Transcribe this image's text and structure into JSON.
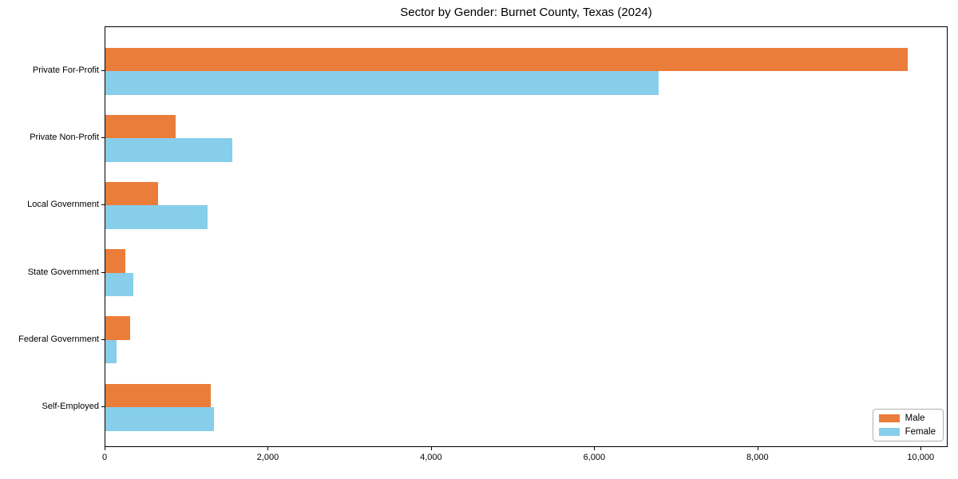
{
  "chart_data": {
    "type": "bar",
    "orientation": "horizontal",
    "title": "Sector by Gender: Burnet County, Texas (2024)",
    "categories": [
      "Private For-Profit",
      "Private Non-Profit",
      "Local Government",
      "State Government",
      "Federal Government",
      "Self-Employed"
    ],
    "series": [
      {
        "name": "Male",
        "color": "#EB7D3A",
        "values": [
          9830,
          865,
          650,
          245,
          305,
          1290
        ]
      },
      {
        "name": "Female",
        "color": "#87CEEB",
        "values": [
          6775,
          1560,
          1250,
          340,
          135,
          1335
        ]
      }
    ],
    "xlabel": "",
    "ylabel": "",
    "xlim": [
      0,
      10330
    ],
    "x_ticks": [
      {
        "value": 0,
        "label": "0"
      },
      {
        "value": 2000,
        "label": "2,000"
      },
      {
        "value": 4000,
        "label": "4,000"
      },
      {
        "value": 6000,
        "label": "6,000"
      },
      {
        "value": 8000,
        "label": "8,000"
      },
      {
        "value": 10000,
        "label": "10,000"
      }
    ],
    "grid": false,
    "legend_position": "lower-right",
    "colors": {
      "male": "#EB7D3A",
      "female": "#87CEEB",
      "axis": "#000000",
      "legend_border": "#b0b0b0",
      "background": "#ffffff"
    }
  }
}
